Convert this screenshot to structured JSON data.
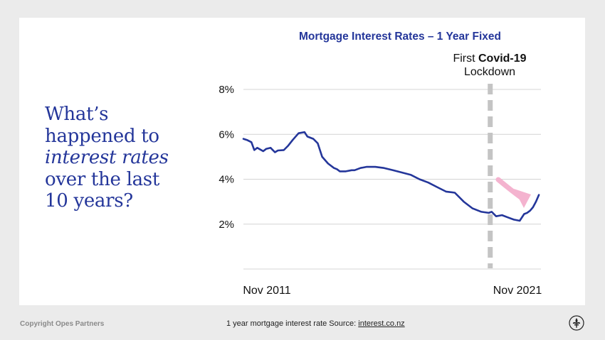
{
  "headline": {
    "line1": "What’s",
    "line2": "happened to",
    "line3": "interest rates",
    "line4": "over the last",
    "line5": "10 years?"
  },
  "chart_data": {
    "type": "line",
    "title": "Mortgage Interest Rates – 1 Year Fixed",
    "ylim": [
      0,
      8
    ],
    "yticks": [
      "8%",
      "6%",
      "4%",
      "2%"
    ],
    "ytick_values": [
      8,
      6,
      4,
      2
    ],
    "x_start_label": "Nov 2011",
    "x_end_label": "Nov 2021",
    "x_range": [
      2011.83,
      2021.92
    ],
    "series": [
      {
        "color": "#24369a",
        "x": [
          2011.83,
          2011.95,
          2012.1,
          2012.2,
          2012.3,
          2012.5,
          2012.6,
          2012.75,
          2012.9,
          2013.0,
          2013.2,
          2013.35,
          2013.5,
          2013.7,
          2013.9,
          2014.0,
          2014.2,
          2014.35,
          2014.5,
          2014.7,
          2014.9,
          2015.0,
          2015.1,
          2015.3,
          2015.5,
          2015.6,
          2015.8,
          2016.0,
          2016.3,
          2016.6,
          2016.9,
          2017.2,
          2017.5,
          2017.8,
          2018.1,
          2018.4,
          2018.7,
          2019.0,
          2019.3,
          2019.6,
          2019.9,
          2020.15,
          2020.25,
          2020.4,
          2020.6,
          2020.8,
          2021.0,
          2021.2,
          2021.35,
          2021.45,
          2021.55,
          2021.65,
          2021.75,
          2021.85
        ],
        "y": [
          5.8,
          5.75,
          5.65,
          5.3,
          5.4,
          5.25,
          5.35,
          5.4,
          5.2,
          5.28,
          5.3,
          5.5,
          5.75,
          6.05,
          6.1,
          5.9,
          5.8,
          5.6,
          5.0,
          4.7,
          4.5,
          4.45,
          4.35,
          4.35,
          4.4,
          4.4,
          4.5,
          4.55,
          4.55,
          4.5,
          4.4,
          4.3,
          4.2,
          4.0,
          3.85,
          3.65,
          3.45,
          3.4,
          3.0,
          2.7,
          2.55,
          2.5,
          2.55,
          2.35,
          2.4,
          2.3,
          2.2,
          2.15,
          2.45,
          2.5,
          2.6,
          2.75,
          3.0,
          3.3
        ]
      }
    ],
    "annotation": {
      "line1_plain": "First ",
      "line1_bold": "Covid-19",
      "line2": "Lockdown",
      "x": 2020.2
    },
    "grid": true,
    "accent_arrow_color": "#f4b3cf"
  },
  "footer": {
    "copyright": "Copyright Opes Partners",
    "caption_prefix": "1 year mortgage interest rate Source: ",
    "caption_link": "interest.co.nz"
  },
  "colors": {
    "navy": "#24369a",
    "background": "#ebebeb",
    "grid": "#d4d4d4",
    "lockdown_line": "#c4c4c4"
  }
}
